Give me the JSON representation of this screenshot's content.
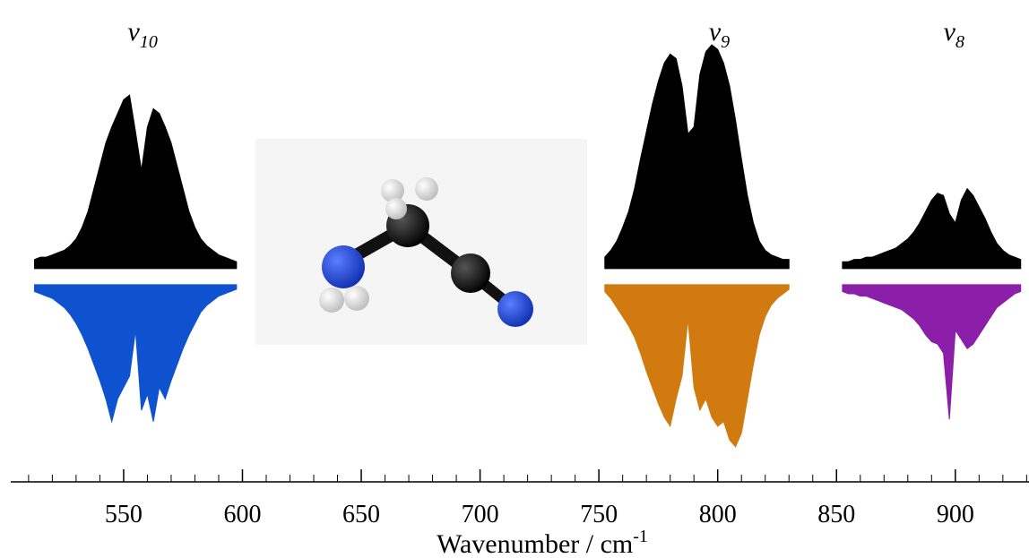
{
  "chart_data": {
    "type": "spectrum",
    "x_label": "Wavenumber / cm",
    "x_label_sup": "-1",
    "xlim": [
      502.5,
      931
    ],
    "xticks": [
      550,
      600,
      650,
      700,
      750,
      800,
      850,
      900
    ],
    "xminor_ticks": [
      510,
      520,
      530,
      540,
      560,
      570,
      580,
      590,
      610,
      620,
      630,
      640,
      660,
      670,
      680,
      690,
      710,
      720,
      730,
      740,
      760,
      770,
      780,
      790,
      810,
      820,
      830,
      840,
      860,
      870,
      880,
      890,
      910,
      920,
      930
    ],
    "ylim": [
      -75,
      100
    ],
    "bands": [
      {
        "symbol": "v",
        "sub": "10",
        "observed_color": "#000000",
        "simulated_color": "#0f52cf",
        "x": [
          512.5,
          515,
          517.5,
          520,
          522.5,
          525,
          527.5,
          530,
          532.5,
          535,
          537.5,
          540,
          542.5,
          545,
          547.5,
          550,
          552.5,
          555,
          557.5,
          560,
          562.5,
          565,
          567.5,
          570,
          572.5,
          575,
          577.5,
          580,
          582.5,
          585,
          587.5,
          590,
          592.5,
          595,
          597.5
        ],
        "observed": [
          4,
          5,
          5,
          6,
          7,
          8,
          10,
          13,
          18,
          25,
          35,
          45,
          55,
          62,
          68,
          74,
          76,
          60,
          43,
          62,
          70,
          68,
          62,
          55,
          45,
          35,
          25,
          18,
          13,
          10,
          8,
          6,
          5,
          4,
          3
        ],
        "simulated": [
          -3,
          -4,
          -5,
          -6,
          -8,
          -10,
          -13,
          -17,
          -22,
          -28,
          -35,
          -42,
          -50,
          -60,
          -50,
          -45,
          -40,
          -20,
          -55,
          -48,
          -60,
          -45,
          -50,
          -42,
          -35,
          -28,
          -22,
          -17,
          -12,
          -9,
          -7,
          -5,
          -4,
          -3,
          -2
        ]
      },
      {
        "symbol": "v",
        "sub": "9",
        "observed_color": "#000000",
        "simulated_color": "#d17a0f",
        "x": [
          752.5,
          755,
          757.5,
          760,
          762.5,
          765,
          767.5,
          770,
          772.5,
          775,
          777.5,
          780,
          782.5,
          785,
          787.5,
          790,
          792.5,
          795,
          797.5,
          800,
          802.5,
          805,
          807.5,
          810,
          812.5,
          815,
          817.5,
          820,
          822.5,
          825,
          827.5,
          830
        ],
        "observed": [
          5,
          8,
          12,
          18,
          25,
          35,
          48,
          60,
          72,
          82,
          90,
          94,
          92,
          80,
          59,
          62,
          85,
          95,
          98,
          96,
          90,
          80,
          65,
          48,
          32,
          20,
          12,
          8,
          6,
          5,
          4,
          4
        ],
        "simulated": [
          -3,
          -6,
          -10,
          -14,
          -18,
          -23,
          -30,
          -38,
          -45,
          -52,
          -58,
          -62,
          -50,
          -40,
          -15,
          -45,
          -55,
          -50,
          -58,
          -62,
          -60,
          -68,
          -71,
          -65,
          -50,
          -35,
          -22,
          -14,
          -9,
          -6,
          -4,
          -2
        ]
      },
      {
        "symbol": "v",
        "sub": "8",
        "observed_color": "#000000",
        "simulated_color": "#8b1fa9",
        "x": [
          852.5,
          855,
          857.5,
          860,
          862.5,
          865,
          867.5,
          870,
          872.5,
          875,
          877.5,
          880,
          882.5,
          885,
          887.5,
          890,
          892.5,
          895,
          897.5,
          900,
          902.5,
          905,
          907.5,
          910,
          912.5,
          915,
          917.5,
          920,
          922.5,
          925,
          927.5
        ],
        "observed": [
          3,
          3,
          4,
          4,
          5,
          5,
          6,
          7,
          8,
          9,
          11,
          13,
          16,
          20,
          25,
          30,
          33,
          32,
          24,
          20,
          30,
          35,
          32,
          27,
          22,
          16,
          11,
          8,
          6,
          5,
          4
        ],
        "simulated": [
          -3,
          -4,
          -4,
          -5,
          -5,
          -6,
          -7,
          -8,
          -9,
          -10,
          -11,
          -13,
          -15,
          -18,
          -22,
          -25,
          -26,
          -30,
          -59,
          -20,
          -24,
          -28,
          -26,
          -22,
          -18,
          -14,
          -10,
          -8,
          -6,
          -4,
          -3
        ]
      }
    ]
  }
}
